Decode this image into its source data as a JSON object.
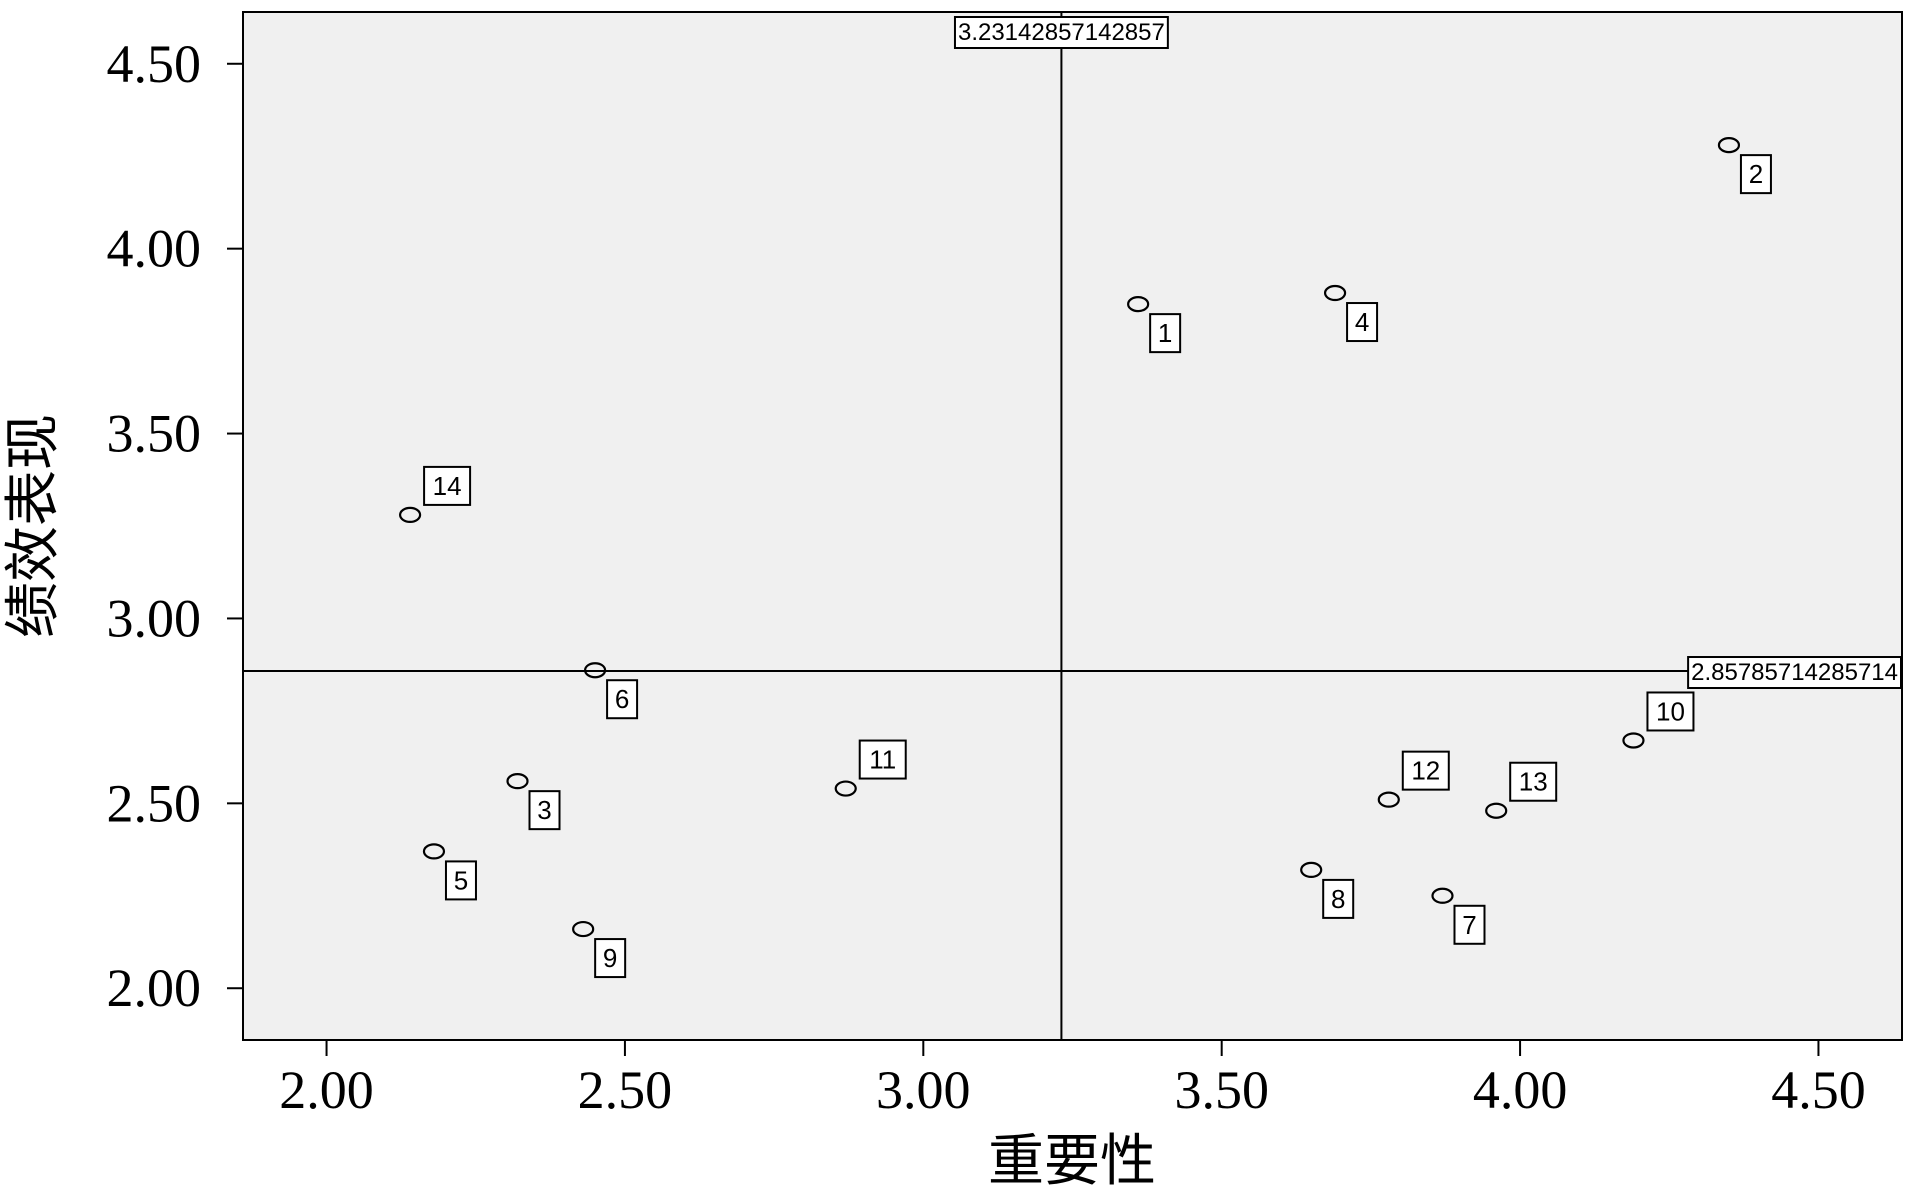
{
  "chart_data": {
    "type": "scatter",
    "xlabel": "重要性",
    "ylabel": "绩效表现",
    "xlim": [
      1.86,
      4.64
    ],
    "ylim": [
      1.86,
      4.64
    ],
    "x_ticks": [
      2.0,
      2.5,
      3.0,
      3.5,
      4.0,
      4.5
    ],
    "x_tick_labels": [
      "2.00",
      "2.50",
      "3.00",
      "3.50",
      "4.00",
      "4.50"
    ],
    "y_ticks": [
      2.0,
      2.5,
      3.0,
      3.5,
      4.0,
      4.5
    ],
    "y_tick_labels": [
      "2.00",
      "2.50",
      "3.00",
      "3.50",
      "4.00",
      "4.50"
    ],
    "grid": false,
    "plot_background": "#f0f0f0",
    "ref_lines": {
      "x": {
        "value": 3.23142857142857,
        "label": "3.23142857142857"
      },
      "y": {
        "value": 2.85785714285714,
        "label": "2.85785714285714"
      }
    },
    "points": [
      {
        "label": "1",
        "x": 3.36,
        "y": 3.85,
        "label_pos": "below-right"
      },
      {
        "label": "2",
        "x": 4.35,
        "y": 4.28,
        "label_pos": "below-right"
      },
      {
        "label": "3",
        "x": 2.32,
        "y": 2.56,
        "label_pos": "below-right"
      },
      {
        "label": "4",
        "x": 3.69,
        "y": 3.88,
        "label_pos": "below-right"
      },
      {
        "label": "5",
        "x": 2.18,
        "y": 2.37,
        "label_pos": "below-right"
      },
      {
        "label": "6",
        "x": 2.45,
        "y": 2.86,
        "label_pos": "below-right"
      },
      {
        "label": "7",
        "x": 3.87,
        "y": 2.25,
        "label_pos": "below-right"
      },
      {
        "label": "8",
        "x": 3.65,
        "y": 2.32,
        "label_pos": "below-right"
      },
      {
        "label": "9",
        "x": 2.43,
        "y": 2.16,
        "label_pos": "below-right"
      },
      {
        "label": "10",
        "x": 4.19,
        "y": 2.67,
        "label_pos": "above-right"
      },
      {
        "label": "11",
        "x": 2.87,
        "y": 2.54,
        "label_pos": "above-right"
      },
      {
        "label": "12",
        "x": 3.78,
        "y": 2.51,
        "label_pos": "above-right"
      },
      {
        "label": "13",
        "x": 3.96,
        "y": 2.48,
        "label_pos": "above-right"
      },
      {
        "label": "14",
        "x": 2.14,
        "y": 3.28,
        "label_pos": "above-right"
      }
    ]
  }
}
